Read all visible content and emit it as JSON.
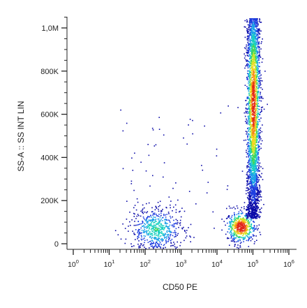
{
  "chart_data": {
    "type": "scatter",
    "subtype": "flow-cytometry density dot plot (rainbow density coloring)",
    "xlabel": "CD50 PE",
    "ylabel": "SS-A :: SS INT LIN",
    "x_scale": "log",
    "x_range": [
      1,
      1000000
    ],
    "x_ticks": [
      {
        "value": 1,
        "base": "10",
        "exp": "0"
      },
      {
        "value": 10,
        "base": "10",
        "exp": "1"
      },
      {
        "value": 100,
        "base": "10",
        "exp": "2"
      },
      {
        "value": 1000,
        "base": "10",
        "exp": "3"
      },
      {
        "value": 10000,
        "base": "10",
        "exp": "4"
      },
      {
        "value": 100000,
        "base": "10",
        "exp": "5"
      },
      {
        "value": 1000000,
        "base": "10",
        "exp": "6"
      }
    ],
    "y_scale": "linear",
    "y_range": [
      -30000,
      1050000
    ],
    "y_ticks": [
      {
        "value": 0,
        "label": "0"
      },
      {
        "value": 200000,
        "label": "200K"
      },
      {
        "value": 400000,
        "label": "400K"
      },
      {
        "value": 600000,
        "label": "600K"
      },
      {
        "value": 800000,
        "label": "800K"
      },
      {
        "value": 1000000,
        "label": "1,0M"
      }
    ],
    "grid": false,
    "legend": "none",
    "density_colors": [
      "#0a0aa8",
      "#1f3fe0",
      "#1aa0e8",
      "#19d0c0",
      "#3cd45a",
      "#c8e62a",
      "#f5d51e",
      "#f58a1a",
      "#e3261a"
    ],
    "populations": [
      {
        "center_x": 200,
        "center_y": 70000,
        "spread_log_x": 0.35,
        "spread_y": 50000,
        "relative_count": 0.14
      },
      {
        "center_x": 45000,
        "center_y": 80000,
        "spread_log_x": 0.2,
        "spread_y": 35000,
        "relative_count": 0.14
      },
      {
        "center_x": 100000,
        "center_y": 650000,
        "spread_log_x": 0.09,
        "spread_y": 250000,
        "relative_count": 0.72
      }
    ]
  }
}
